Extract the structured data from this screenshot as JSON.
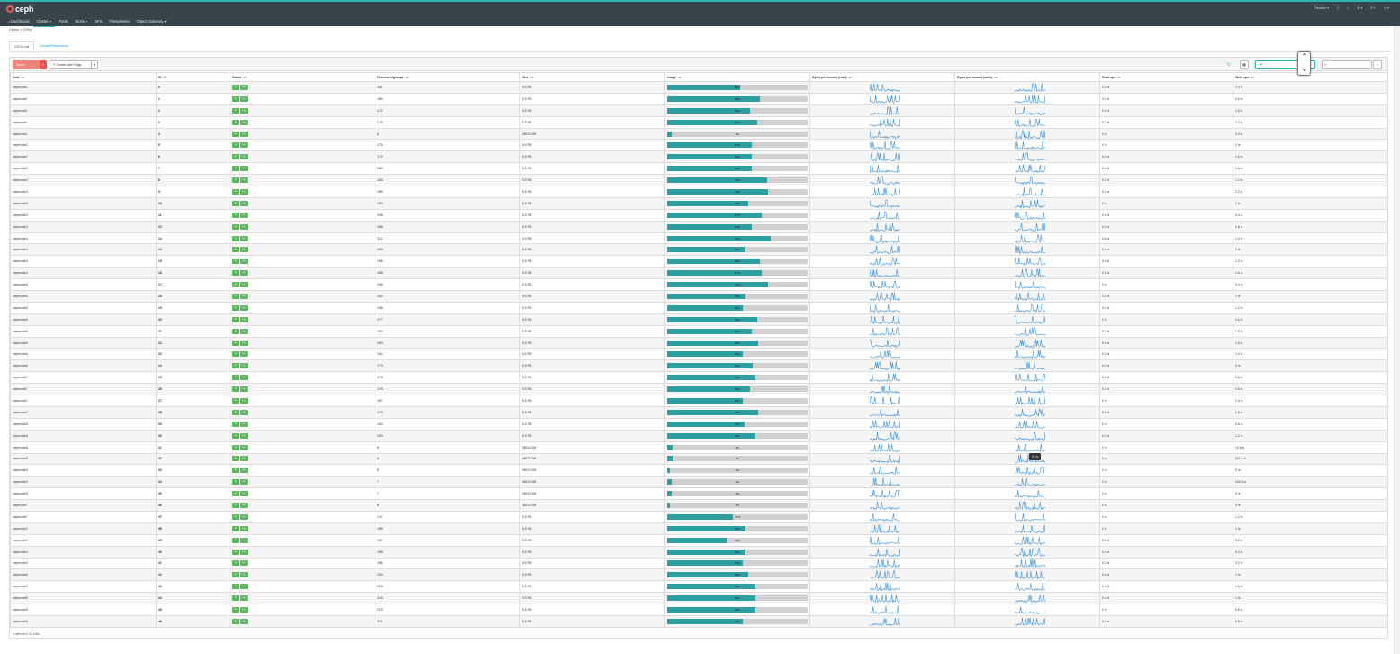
{
  "navbar": {
    "brand": "ceph",
    "links": [
      {
        "label": "Dashboard",
        "active": false,
        "dot": true
      },
      {
        "label": "Cluster ▾",
        "active": true,
        "dot": false
      },
      {
        "label": "Pools",
        "active": false,
        "dot": false
      },
      {
        "label": "Block ▾",
        "active": false,
        "dot": false
      },
      {
        "label": "NFS",
        "active": false,
        "dot": false
      },
      {
        "label": "Filesystems",
        "active": false,
        "dot": false
      },
      {
        "label": "Object Gateway ▾",
        "active": false,
        "dot": false
      }
    ],
    "right": [
      "Deutsch ▾",
      "▯",
      "⌂",
      "⚙ ▾",
      "⚿ ▾",
      "☺ ▾"
    ]
  },
  "breadcrumb": "Cluster  >  OSDs",
  "tabs": [
    {
      "label": "OSDs List",
      "active": true
    },
    {
      "label": "Overall Performance",
      "active": false
    }
  ],
  "toolbar": {
    "action_label": "Scrub",
    "template_label": "✎ Create-wide Flags",
    "refresh_icon": "↻",
    "columns_icon": "▦",
    "filter_icon": "▼",
    "search_icon": "⌕",
    "search_value": "",
    "clear_label": "×"
  },
  "columns": [
    "Host",
    "ID",
    "Status",
    "Placement groups",
    "Size",
    "Usage",
    "Bytes per second (read)",
    "Bytes per second (write)",
    "Read ops",
    "Write ops"
  ],
  "column_sort": [
    "▴▾",
    "⇅",
    "▴▾",
    "▴▾",
    "▴▾",
    "▴▾",
    "▴▾",
    "▴▾",
    "▴▾",
    "▴▾"
  ],
  "status_badges": [
    "in",
    "up"
  ],
  "rows": [
    {
      "host": "cephnode1",
      "id": "0",
      "pgs": "181",
      "size": "5.5 TiB",
      "usage": 52,
      "usage_label": "52%",
      "read_ops": "0.2 /s",
      "write_ops": "2.4 /s"
    },
    {
      "host": "cephnode1",
      "id": "1",
      "pgs": "189",
      "size": "5.5 TiB",
      "usage": 66,
      "usage_label": "66%",
      "read_ops": "0.2 /s",
      "write_ops": "0.6 /s"
    },
    {
      "host": "cephnode1",
      "id": "2",
      "pgs": "172",
      "size": "5.5 TiB",
      "usage": 59,
      "usage_label": "59%",
      "read_ops": "0.2 /s",
      "write_ops": "1.8 /s"
    },
    {
      "host": "cephnode1",
      "id": "3",
      "pgs": "178",
      "size": "5.5 TiB",
      "usage": 64,
      "usage_label": "64%",
      "read_ops": "0.2 /s",
      "write_ops": "2.4 /s"
    },
    {
      "host": "cephnode1",
      "id": "4",
      "pgs": "8",
      "size": "380.5 GiB",
      "usage": 3,
      "usage_label": "3%",
      "read_ops": "0 /s",
      "write_ops": "0.0 /s"
    },
    {
      "host": "cephnode2",
      "id": "5",
      "pgs": "175",
      "size": "5.5 TiB",
      "usage": 60,
      "usage_label": "60%",
      "read_ops": "0 /s",
      "write_ops": "1 /s"
    },
    {
      "host": "cephnode2",
      "id": "6",
      "pgs": "172",
      "size": "5.5 TiB",
      "usage": 60,
      "usage_label": "60%",
      "read_ops": "0.2 /s",
      "write_ops": "1.6 /s"
    },
    {
      "host": "cephnode2",
      "id": "7",
      "pgs": "180",
      "size": "5.5 TiB",
      "usage": 60,
      "usage_label": "60%",
      "read_ops": "0.2 /s",
      "write_ops": "1.8 /s"
    },
    {
      "host": "cephnode3",
      "id": "8",
      "pgs": "183",
      "size": "5.5 TiB",
      "usage": 71,
      "usage_label": "71%",
      "read_ops": "0.2 /s",
      "write_ops": "1.2 /s"
    },
    {
      "host": "cephnode3",
      "id": "9",
      "pgs": "189",
      "size": "5.5 TiB",
      "usage": 72,
      "usage_label": "72%",
      "read_ops": "0.2 /s",
      "write_ops": "2.2 /s"
    },
    {
      "host": "cephnode3",
      "id": "10",
      "pgs": "183",
      "size": "5.5 TiB",
      "usage": 58,
      "usage_label": "58%",
      "read_ops": "0 /s",
      "write_ops": "1 /s"
    },
    {
      "host": "cephnode3",
      "id": "11",
      "pgs": "198",
      "size": "5.5 TiB",
      "usage": 67,
      "usage_label": "67%",
      "read_ops": "0.4 /s",
      "write_ops": "2.4 /s"
    },
    {
      "host": "cephnode3",
      "id": "12",
      "pgs": "186",
      "size": "5.5 TiB",
      "usage": 60,
      "usage_label": "60%",
      "read_ops": "0.2 /s",
      "write_ops": "1.6 /s"
    },
    {
      "host": "cephnode4",
      "id": "13",
      "pgs": "212",
      "size": "5.5 TiB",
      "usage": 74,
      "usage_label": "74%",
      "read_ops": "0.6 /s",
      "write_ops": "1.0 /s"
    },
    {
      "host": "cephnode4",
      "id": "14",
      "pgs": "183",
      "size": "5.5 TiB",
      "usage": 55,
      "usage_label": "55%",
      "read_ops": "0.2 /s",
      "write_ops": "1 /s"
    },
    {
      "host": "cephnode4",
      "id": "15",
      "pgs": "186",
      "size": "5.5 TiB",
      "usage": 66,
      "usage_label": "66%",
      "read_ops": "0.4 /s",
      "write_ops": "1.2 /s"
    },
    {
      "host": "cephnode4",
      "id": "16",
      "pgs": "188",
      "size": "5.5 TiB",
      "usage": 67,
      "usage_label": "67%",
      "read_ops": "0.8 /s",
      "write_ops": "1.6 /s"
    },
    {
      "host": "cephnode5",
      "id": "17",
      "pgs": "196",
      "size": "5.5 TiB",
      "usage": 72,
      "usage_label": "72%",
      "read_ops": "0 /s",
      "write_ops": "0.4 /s"
    },
    {
      "host": "cephnode5",
      "id": "18",
      "pgs": "180",
      "size": "5.5 TiB",
      "usage": 56,
      "usage_label": "56%",
      "read_ops": "0.2 /s",
      "write_ops": "1 /s"
    },
    {
      "host": "cephnode5",
      "id": "19",
      "pgs": "168",
      "size": "5.5 TiB",
      "usage": 54,
      "usage_label": "54%",
      "read_ops": "0.2 /s",
      "write_ops": "1.2 /s"
    },
    {
      "host": "cephnode5",
      "id": "20",
      "pgs": "177",
      "size": "5.5 TiB",
      "usage": 64,
      "usage_label": "64%",
      "read_ops": "0 /s",
      "write_ops": "0.6 /s"
    },
    {
      "host": "cephnode6",
      "id": "21",
      "pgs": "180",
      "size": "5.5 TiB",
      "usage": 60,
      "usage_label": "60%",
      "read_ops": "0.2 /s",
      "write_ops": "1.8 /s"
    },
    {
      "host": "cephnode6",
      "id": "22",
      "pgs": "183",
      "size": "5.5 TiB",
      "usage": 65,
      "usage_label": "65%",
      "read_ops": "0.6 /s",
      "write_ops": "1.6 /s"
    },
    {
      "host": "cephnode6",
      "id": "23",
      "pgs": "164",
      "size": "5.5 TiB",
      "usage": 54,
      "usage_label": "54%",
      "read_ops": "0.2 /s",
      "write_ops": "1.0 /s"
    },
    {
      "host": "cephnode6",
      "id": "24",
      "pgs": "173",
      "size": "5.5 TiB",
      "usage": 61,
      "usage_label": "61%",
      "read_ops": "0.2 /s",
      "write_ops": "0 /s"
    },
    {
      "host": "cephnode7",
      "id": "25",
      "pgs": "178",
      "size": "5.5 TiB",
      "usage": 63,
      "usage_label": "63%",
      "read_ops": "0.2 /s",
      "write_ops": "0.8 /s"
    },
    {
      "host": "cephnode7",
      "id": "26",
      "pgs": "175",
      "size": "5.5 TiB",
      "usage": 59,
      "usage_label": "59%",
      "read_ops": "0.2 /s",
      "write_ops": "0.8 /s"
    },
    {
      "host": "cephnode7",
      "id": "27",
      "pgs": "167",
      "size": "5.5 TiB",
      "usage": 54,
      "usage_label": "54%",
      "read_ops": "0 /s",
      "write_ops": "1.4 /s"
    },
    {
      "host": "cephnode7",
      "id": "28",
      "pgs": "170",
      "size": "5.5 TiB",
      "usage": 65,
      "usage_label": "65%",
      "read_ops": "0.8 /s",
      "write_ops": "1.6 /s"
    },
    {
      "host": "cephnode8",
      "id": "29",
      "pgs": "163",
      "size": "5.5 TiB",
      "usage": 55,
      "usage_label": "55%",
      "read_ops": "0 /s",
      "write_ops": "0.6 /s"
    },
    {
      "host": "cephnode8",
      "id": "30",
      "pgs": "183",
      "size": "5.5 TiB",
      "usage": 63,
      "usage_label": "63%",
      "read_ops": "0.2 /s",
      "write_ops": "1.2 /s"
    },
    {
      "host": "cephnode8",
      "id": "31",
      "pgs": "8",
      "size": "380.5 GiB",
      "usage": 4,
      "usage_label": "4%",
      "read_ops": "0 /s",
      "write_ops": "14.8 /s"
    },
    {
      "host": "cephnode9",
      "id": "32",
      "pgs": "8",
      "size": "380.5 GiB",
      "usage": 4,
      "usage_label": "4%",
      "read_ops": "0 /s",
      "write_ops": "211.4 /s"
    },
    {
      "host": "cephnode4",
      "id": "33",
      "pgs": "8",
      "size": "380.5 GiB",
      "usage": 2,
      "usage_label": "2%",
      "read_ops": "0 /s",
      "write_ops": "9 /s"
    },
    {
      "host": "cephnode9",
      "id": "34",
      "pgs": "7",
      "size": "380.5 GiB",
      "usage": 3,
      "usage_label": "3%",
      "read_ops": "0 /s",
      "write_ops": "120.8 /s"
    },
    {
      "host": "cephnode9",
      "id": "35",
      "pgs": "7",
      "size": "380.5 GiB",
      "usage": 3,
      "usage_label": "3%",
      "read_ops": "0 /s",
      "write_ops": "9 /s"
    },
    {
      "host": "cephnode7",
      "id": "36",
      "pgs": "8",
      "size": "380.5 GiB",
      "usage": 2,
      "usage_label": "2%",
      "read_ops": "0 /s",
      "write_ops": "0 /s"
    },
    {
      "host": "cephnode7",
      "id": "37",
      "pgs": "147",
      "size": "5.5 TiB",
      "usage": 47,
      "usage_label": "47%",
      "read_ops": "0 /s",
      "write_ops": "1.2 /s"
    },
    {
      "host": "cephnode2",
      "id": "38",
      "pgs": "185",
      "size": "5.5 TiB",
      "usage": 56,
      "usage_label": "56%",
      "read_ops": "0 /s",
      "write_ops": "1 /s"
    },
    {
      "host": "cephnode3",
      "id": "39",
      "pgs": "137",
      "size": "5.5 TiB",
      "usage": 43,
      "usage_label": "43%",
      "read_ops": "0.2 /s",
      "write_ops": "0.2 /s"
    },
    {
      "host": "cephnode4",
      "id": "40",
      "pgs": "168",
      "size": "5.5 TiB",
      "usage": 55,
      "usage_label": "55%",
      "read_ops": "0.2 /s",
      "write_ops": "0.4 /s"
    },
    {
      "host": "cephnode5",
      "id": "41",
      "pgs": "156",
      "size": "5.5 TiB",
      "usage": 54,
      "usage_label": "54%",
      "read_ops": "0.2 /s",
      "write_ops": "0.2 /s"
    },
    {
      "host": "cephnode6",
      "id": "42",
      "pgs": "203",
      "size": "5.5 TiB",
      "usage": 58,
      "usage_label": "58%",
      "read_ops": "0.6 /s",
      "write_ops": "1 /s"
    },
    {
      "host": "cephnode8",
      "id": "43",
      "pgs": "218",
      "size": "5.5 TiB",
      "usage": 63,
      "usage_label": "63%",
      "read_ops": "0.4 /s",
      "write_ops": "1.6 /s"
    },
    {
      "host": "cephnode8",
      "id": "44",
      "pgs": "218",
      "size": "5.5 TiB",
      "usage": 63,
      "usage_label": "63%",
      "read_ops": "0.4 /s",
      "write_ops": "1 /s"
    },
    {
      "host": "cephnode9",
      "id": "45",
      "pgs": "219",
      "size": "5.5 TiB",
      "usage": 63,
      "usage_label": "63%",
      "read_ops": "0 /s",
      "write_ops": "0.6 /s"
    },
    {
      "host": "cephnode9",
      "id": "46",
      "pgs": "221",
      "size": "5.5 TiB",
      "usage": 54,
      "usage_label": "54%",
      "read_ops": "0.2 /s",
      "write_ops": "0.6 /s"
    }
  ],
  "footer": "0 selected / 47 total",
  "tooltip": "21 /s",
  "colors": {
    "navbar": "#37444b",
    "accent": "#2eb3b0",
    "usage_fill": "#2e9fa0",
    "badge_green": "#5cb85c",
    "sparkline": "#3a8fd6",
    "action_red": "#ef5c55"
  }
}
